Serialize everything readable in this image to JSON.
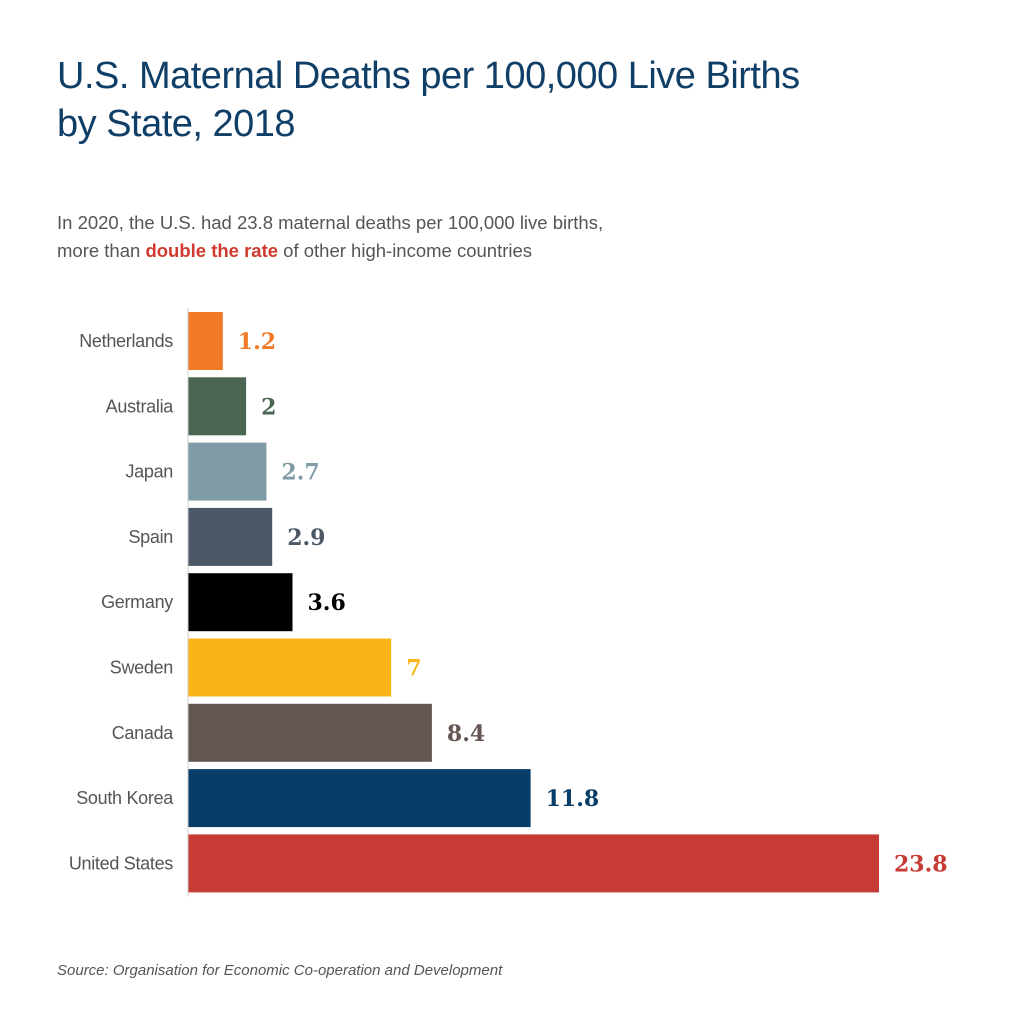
{
  "title_line1": "U.S. Maternal Deaths per 100,000 Live Births",
  "title_line2": "by State, 2018",
  "subtitle": {
    "line1": "In 2020, the U.S. had 23.8 maternal deaths per 100,000 live births,",
    "line2_before": "more than ",
    "line2_highlight": "double the rate",
    "line2_after": " of other high-income countries"
  },
  "source": "Source: Organisation for Economic Co-operation and Development",
  "colors": {
    "title": "#0f3e66",
    "highlight": "#d03a2f",
    "text": "#555555"
  },
  "chart_data": {
    "type": "bar",
    "orientation": "horizontal",
    "categories": [
      "Netherlands",
      "Australia",
      "Japan",
      "Spain",
      "Germany",
      "Sweden",
      "Canada",
      "South Korea",
      "United States"
    ],
    "values": [
      1.2,
      2,
      2.7,
      2.9,
      3.6,
      7,
      8.4,
      11.8,
      23.8
    ],
    "value_labels": [
      "1.2",
      "2",
      "2.7",
      "2.9",
      "3.6",
      "7",
      "8.4",
      "11.8",
      "23.8"
    ],
    "colors": [
      "#f07a25",
      "#4a6652",
      "#7f9ba6",
      "#4b5966",
      "#000000",
      "#f9b418",
      "#635651",
      "#073e69",
      "#c63b34"
    ],
    "xlim": [
      0,
      23.8
    ],
    "grid": false,
    "legend": "none"
  }
}
